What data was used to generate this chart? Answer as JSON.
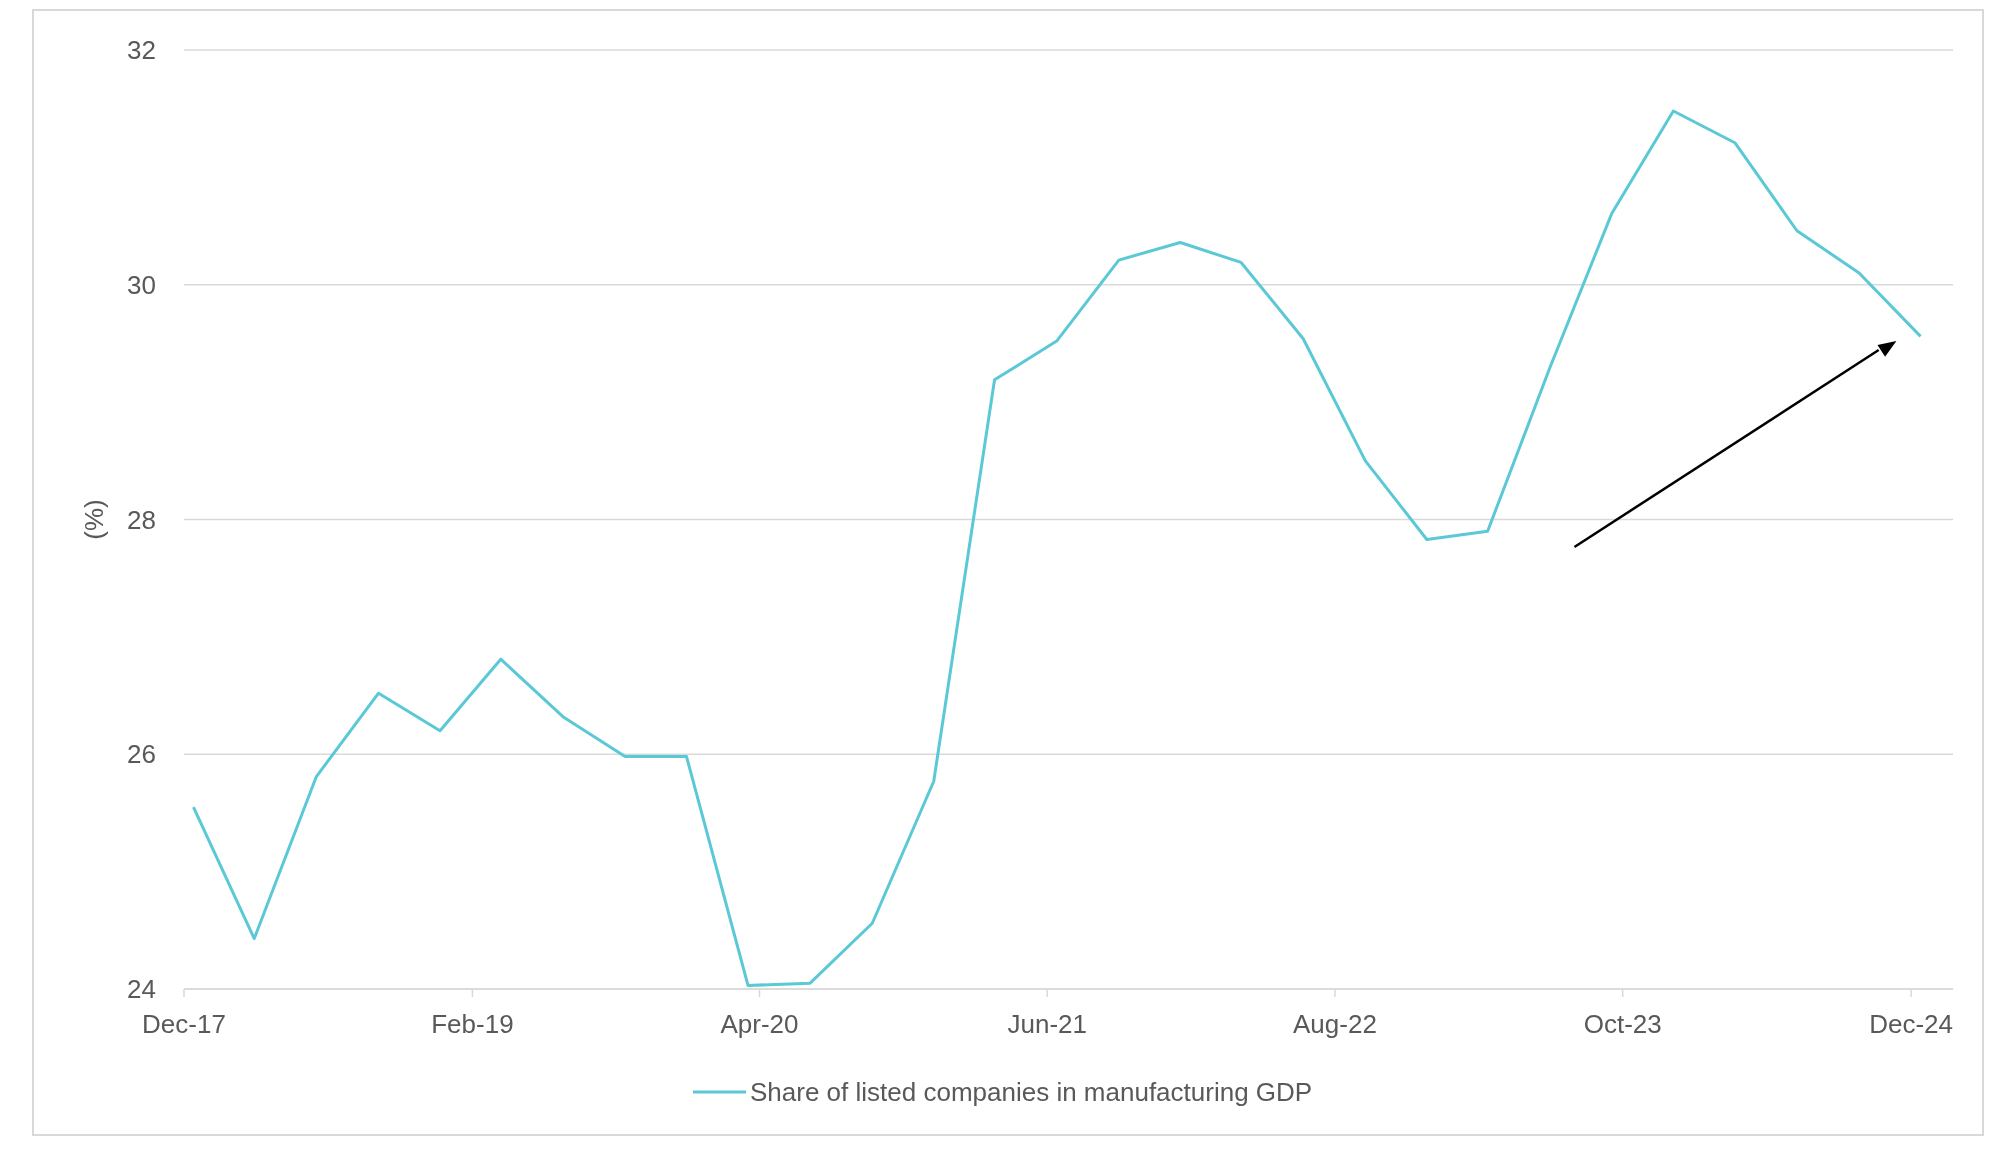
{
  "chart_data": {
    "type": "line",
    "ylabel": "(%)",
    "xlim": [
      "2017-12-01",
      "2025-02-01"
    ],
    "xticks": [
      {
        "value": "2017-12-01",
        "label": "Dec-17"
      },
      {
        "value": "2019-02-01",
        "label": "Feb-19"
      },
      {
        "value": "2020-04-01",
        "label": "Apr-20"
      },
      {
        "value": "2021-06-01",
        "label": "Jun-21"
      },
      {
        "value": "2022-08-01",
        "label": "Aug-22"
      },
      {
        "value": "2023-10-01",
        "label": "Oct-23"
      },
      {
        "value": "2024-12-01",
        "label": "Dec-24"
      }
    ],
    "ylim": [
      24,
      32
    ],
    "yticks": [
      24,
      26,
      28,
      30,
      32
    ],
    "grid": "y",
    "legend": "bottom",
    "marker": "none",
    "line_style": "solid",
    "x": [
      "2017-12-15",
      "2018-03-15",
      "2018-06-15",
      "2018-09-15",
      "2018-12-15",
      "2019-03-15",
      "2019-06-15",
      "2019-09-15",
      "2019-12-15",
      "2020-03-15",
      "2020-06-15",
      "2020-09-15",
      "2020-12-15",
      "2021-03-15",
      "2021-06-15",
      "2021-09-15",
      "2021-12-15",
      "2022-03-15",
      "2022-06-15",
      "2022-09-15",
      "2022-12-15",
      "2023-03-15",
      "2023-06-15",
      "2023-09-15",
      "2023-12-15",
      "2024-03-15",
      "2024-06-15",
      "2024-09-15",
      "2024-12-15"
    ],
    "series": [
      {
        "name": "Share of listed companies in manufacturing GDP",
        "color": "#5bc8d6",
        "values": [
          25.55,
          24.43,
          25.81,
          26.52,
          26.2,
          26.81,
          26.32,
          25.98,
          25.98,
          24.03,
          24.05,
          24.56,
          25.77,
          29.19,
          29.52,
          30.21,
          30.36,
          30.19,
          29.54,
          28.5,
          27.83,
          27.9,
          29.29,
          30.61,
          31.48,
          31.21,
          30.46,
          30.1,
          29.56
        ]
      }
    ]
  }
}
